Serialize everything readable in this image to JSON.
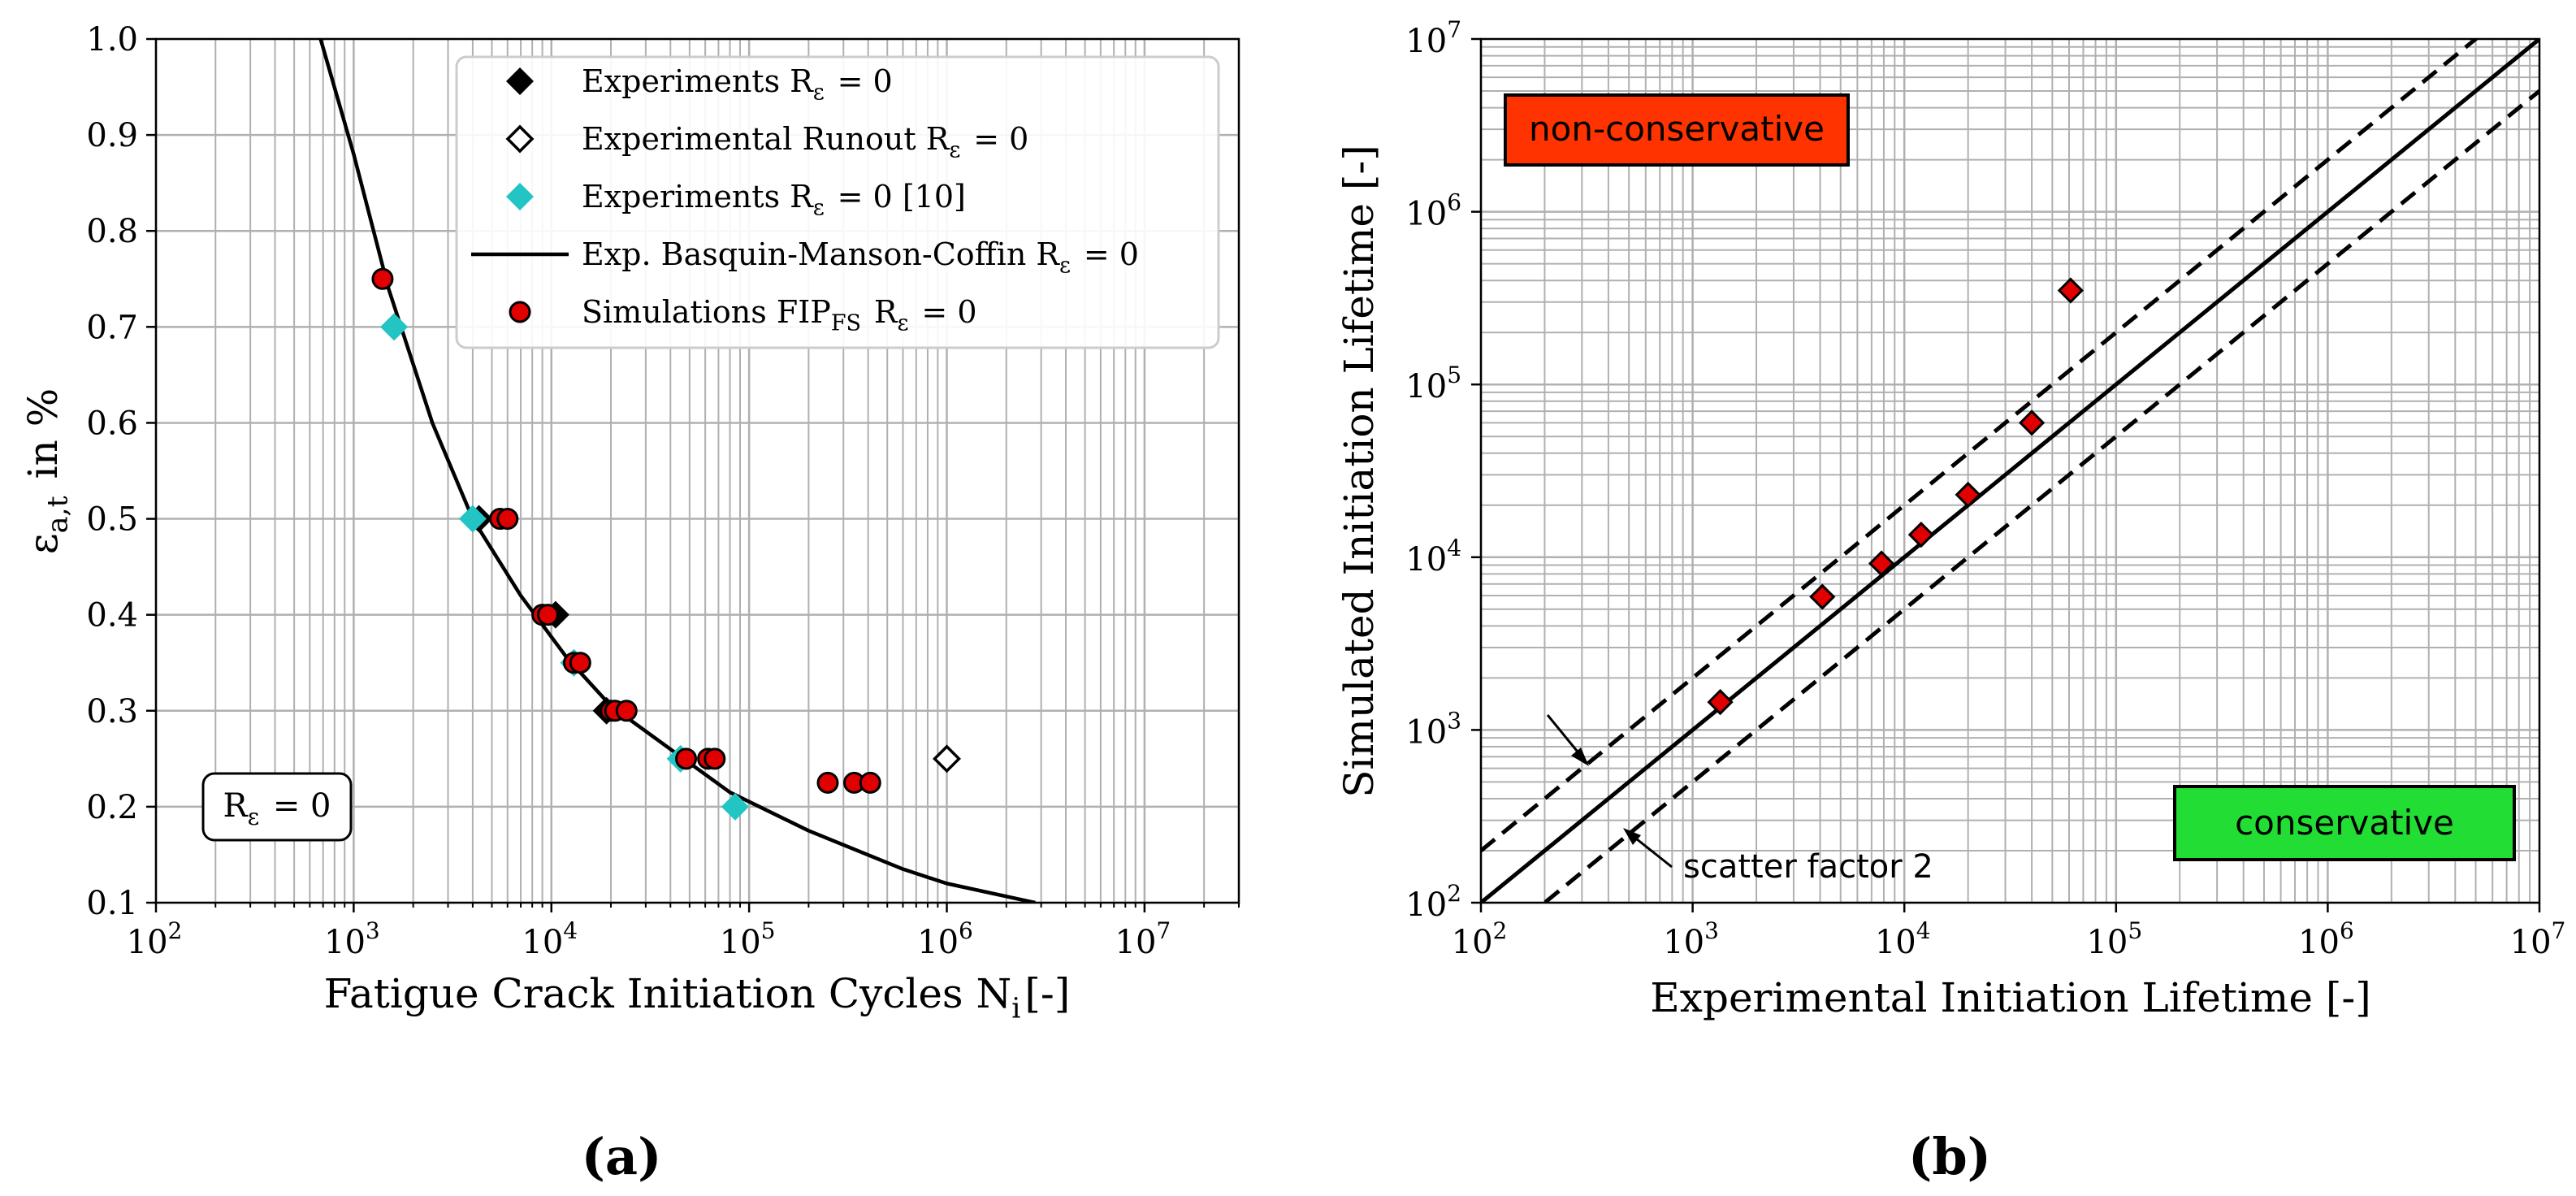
{
  "chart_data": [
    {
      "type": "scatter",
      "panel_label": "(a)",
      "xlabel": "Fatigue Crack Initiation Cycles N_i[-]",
      "ylabel": "ε_a,t in %",
      "x_scale": "log",
      "xlim": [
        100,
        30000000
      ],
      "ylim": [
        0.1,
        1.0
      ],
      "x_ticks": [
        100,
        1000,
        10000,
        100000,
        1000000,
        10000000
      ],
      "x_tick_labels": [
        "10^2",
        "10^3",
        "10^4",
        "10^5",
        "10^6",
        "10^7"
      ],
      "y_ticks": [
        0.1,
        0.2,
        0.3,
        0.4,
        0.5,
        0.6,
        0.7,
        0.8,
        0.9,
        1.0
      ],
      "y_tick_labels": [
        "0.1",
        "0.2",
        "0.3",
        "0.4",
        "0.5",
        "0.6",
        "0.7",
        "0.8",
        "0.9",
        "1.0"
      ],
      "grid": true,
      "legend_position": "top-right",
      "annotation": "R_ε = 0",
      "series": [
        {
          "name": "Experiments R_ε = 0",
          "marker": "diamond",
          "color": "#000000",
          "points": [
            [
              4300,
              0.5
            ],
            [
              10500,
              0.4
            ],
            [
              19000,
              0.3
            ]
          ]
        },
        {
          "name": "Experimental Runout R_ε = 0",
          "marker": "diamond-open",
          "color": "#000000",
          "points": [
            [
              1000000,
              0.25
            ]
          ]
        },
        {
          "name": "Experiments R_ε = 0 [10]",
          "marker": "diamond",
          "color": "#22c4c4",
          "points": [
            [
              1600,
              0.7
            ],
            [
              4000,
              0.5
            ],
            [
              13000,
              0.35
            ],
            [
              45000,
              0.25
            ],
            [
              85000,
              0.2
            ]
          ]
        },
        {
          "name": "Exp. Basquin-Manson-Coffin R_ε = 0",
          "marker": "line",
          "color": "#000000",
          "points": [
            [
              680,
              1.0
            ],
            [
              1000,
              0.88
            ],
            [
              1500,
              0.74
            ],
            [
              2500,
              0.6
            ],
            [
              4000,
              0.5
            ],
            [
              7000,
              0.42
            ],
            [
              12000,
              0.355
            ],
            [
              20000,
              0.305
            ],
            [
              40000,
              0.26
            ],
            [
              80000,
              0.215
            ],
            [
              200000,
              0.175
            ],
            [
              600000,
              0.135
            ],
            [
              1000000,
              0.12
            ],
            [
              2800000,
              0.1
            ]
          ]
        },
        {
          "name": "Simulations FIP_FS R_ε = 0",
          "marker": "circle",
          "color": "#e00000",
          "points": [
            [
              1400,
              0.75
            ],
            [
              5500,
              0.5
            ],
            [
              6000,
              0.5
            ],
            [
              9000,
              0.4
            ],
            [
              9600,
              0.4
            ],
            [
              13000,
              0.35
            ],
            [
              14000,
              0.35
            ],
            [
              20000,
              0.3
            ],
            [
              21000,
              0.3
            ],
            [
              24000,
              0.3
            ],
            [
              48000,
              0.25
            ],
            [
              62000,
              0.25
            ],
            [
              67000,
              0.25
            ],
            [
              250000,
              0.225
            ],
            [
              340000,
              0.225
            ],
            [
              410000,
              0.225
            ]
          ]
        }
      ]
    },
    {
      "type": "scatter",
      "panel_label": "(b)",
      "xlabel": "Experimental Initiation Lifetime [-]",
      "ylabel": "Simulated Initiation Lifetime [-]",
      "x_scale": "log",
      "y_scale": "log",
      "xlim": [
        100,
        10000000
      ],
      "ylim": [
        100,
        10000000
      ],
      "x_ticks": [
        100,
        1000,
        10000,
        100000,
        1000000,
        10000000
      ],
      "x_tick_labels": [
        "10^2",
        "10^3",
        "10^4",
        "10^5",
        "10^6",
        "10^7"
      ],
      "y_ticks": [
        100,
        1000,
        10000,
        100000,
        1000000,
        10000000
      ],
      "y_tick_labels": [
        "10^2",
        "10^3",
        "10^4",
        "10^5",
        "10^6",
        "10^7"
      ],
      "grid": true,
      "region_labels": {
        "upper": "non-conservative",
        "lower": "conservative"
      },
      "region_colors": {
        "upper": "#ff3300",
        "lower": "#22dd33"
      },
      "annotation": "scatter factor 2",
      "reference_lines": [
        {
          "kind": "solid",
          "factor": 1
        },
        {
          "kind": "dashed",
          "factor": 2
        },
        {
          "kind": "dashed",
          "factor": 0.5
        }
      ],
      "points": [
        [
          1350,
          1450
        ],
        [
          4100,
          5900
        ],
        [
          7800,
          9200
        ],
        [
          12000,
          13500
        ],
        [
          20000,
          23000
        ],
        [
          40000,
          60000
        ],
        [
          61000,
          350000
        ]
      ],
      "point_color": "#e00000"
    }
  ]
}
